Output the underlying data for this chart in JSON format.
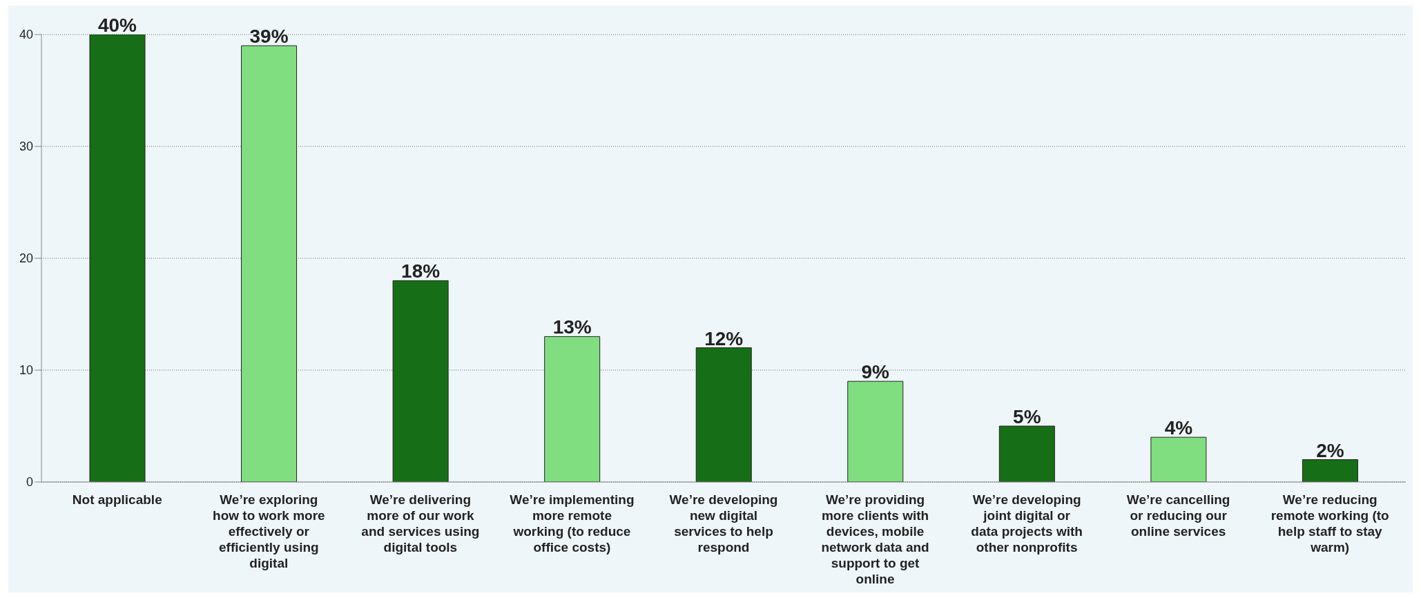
{
  "chart_data": {
    "type": "bar",
    "categories": [
      "Not applicable",
      "We’re exploring how to work more effectively or efficiently using digital",
      "We’re delivering more of our work and services using digital tools",
      "We’re implementing more remote working (to reduce office costs)",
      "We’re developing new digital services to help respond",
      "We’re providing more clients with devices, mobile network data and support to get online",
      "We’re developing joint digital or data projects with other nonprofits",
      "We’re cancelling or reducing our online services",
      "We’re reducing remote working (to help staff to stay warm)"
    ],
    "values": [
      40,
      39,
      18,
      13,
      12,
      9,
      5,
      4,
      2
    ],
    "value_labels": [
      "40%",
      "39%",
      "18%",
      "13%",
      "12%",
      "9%",
      "5%",
      "4%",
      "2%"
    ],
    "colors": [
      "#166f16",
      "#80de80",
      "#166f16",
      "#80de80",
      "#166f16",
      "#80de80",
      "#166f16",
      "#80de80",
      "#166f16"
    ],
    "ylim": [
      0,
      40
    ],
    "yticks": [
      0,
      10,
      20,
      30,
      40
    ],
    "grid": "y"
  }
}
